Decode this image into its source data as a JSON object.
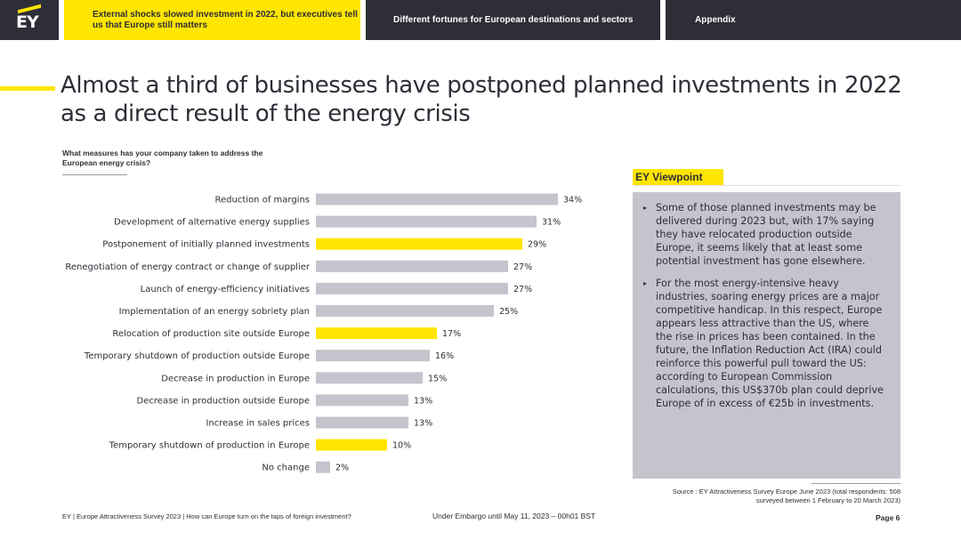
{
  "nav": {
    "logo": "EY",
    "tabs": [
      {
        "label": "External shocks slowed investment in 2022, but executives tell us that Europe still matters"
      },
      {
        "label": "Different fortunes for European destinations and sectors"
      },
      {
        "label": "Appendix"
      }
    ]
  },
  "title": "Almost a third of businesses have postponed planned investments in 2022 as a direct result of the energy crisis",
  "question": "What measures has your company taken to address the European energy crisis?",
  "colors": {
    "highlight": "#ffe600",
    "default_bar": "#c4c4cd",
    "text": "#2e2e38"
  },
  "chart_data": {
    "type": "bar",
    "orientation": "horizontal",
    "categories": [
      "Reduction of margins",
      "Development of alternative energy supplies",
      "Postponement of initially planned investments",
      "Renegotiation of energy contract or change of supplier",
      "Launch of energy-efficiency initiatives",
      "Implementation of an energy sobriety plan",
      "Relocation of production site outside Europe",
      "Temporary shutdown of production outside Europe",
      "Decrease in production in Europe",
      "Decrease in production outside Europe",
      "Increase in sales prices",
      "Temporary shutdown of production in Europe",
      "No change"
    ],
    "values": [
      34,
      31,
      29,
      27,
      27,
      25,
      17,
      16,
      15,
      13,
      13,
      10,
      2
    ],
    "labels": [
      "34%",
      "31%",
      "29%",
      "27%",
      "27%",
      "25%",
      "17%",
      "16%",
      "15%",
      "13%",
      "13%",
      "10%",
      "2%"
    ],
    "highlighted": [
      false,
      false,
      true,
      false,
      false,
      false,
      true,
      false,
      false,
      false,
      false,
      true,
      false
    ],
    "xlim": [
      0,
      34
    ],
    "grid": false,
    "legend": "none"
  },
  "viewpoint": {
    "tag": "EY Viewpoint",
    "bullet_glyph": "▸",
    "items": [
      "Some of those planned investments may be delivered during 2023 but, with 17% saying they have relocated production outside Europe, it seems likely that at least some potential investment has gone elsewhere.",
      "For the most energy-intensive heavy industries, soaring energy prices are a major competitive handicap. In this respect, Europe appears less attractive than the US, where the rise in prices has been contained. In the future, the Inflation Reduction Act (IRA) could reinforce this powerful pull toward the US: according to European Commission calculations, this US$370b plan could deprive Europe of in excess of €25b in investments."
    ]
  },
  "source": "Source : EY Attractiveness Survey Europe June 2023 (total respondents: 508 surveyed between 1 February to 20 March 2023)",
  "footer": {
    "left": "EY | Europe Attractiveness Survey 2023 | How can Europe turn on the taps of foreign investment?",
    "middle": "Under Embargo until May 11, 2023 – 00h01 BST",
    "page": "Page 6"
  }
}
